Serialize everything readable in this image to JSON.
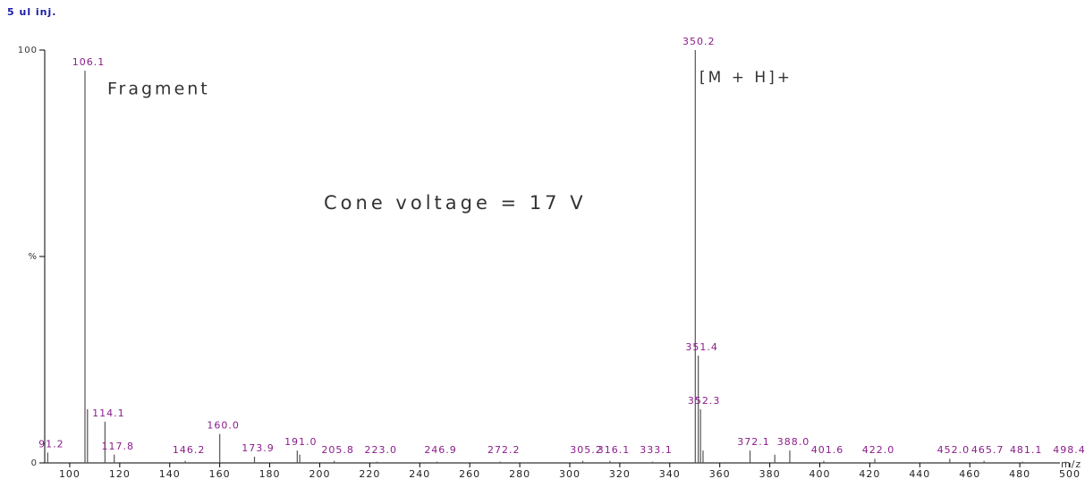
{
  "chart_data": {
    "type": "spectrum",
    "title": "5 ul inj.",
    "annotations": [
      "Fragment",
      "Cone voltage = 17 V",
      "[M + H]+"
    ],
    "x_label": "m/z",
    "color": "#555555",
    "label_color": "#8b1c8b",
    "x": [
      91.2,
      106.1,
      107.1,
      114.1,
      117.8,
      146.2,
      160.0,
      173.9,
      191.0,
      192.0,
      205.8,
      223.0,
      246.9,
      272.2,
      305.2,
      316.1,
      333.1,
      350.2,
      351.4,
      352.3,
      353.3,
      372.1,
      382.0,
      388.0,
      401.6,
      422.0,
      452.0,
      465.7,
      481.1,
      498.4
    ],
    "x_labels": [
      "91.2",
      "106.1",
      null,
      "114.1",
      "117.8",
      "146.2",
      "160.0",
      "173.9",
      "191.0",
      null,
      "205.8",
      "223.0",
      "246.9",
      "272.2",
      "305.2",
      "316.1",
      "333.1",
      "350.2",
      "351.4",
      "352.3",
      null,
      "372.1",
      null,
      "388.0",
      "401.6",
      "422.0",
      "452.0",
      "465.7",
      "481.1",
      "498.4"
    ],
    "values": [
      2.5,
      95,
      13,
      10,
      2,
      0.5,
      7,
      1.5,
      3,
      2,
      0.5,
      0.3,
      0.3,
      0.3,
      0.5,
      0.5,
      0.3,
      100,
      26,
      13,
      3,
      3,
      2,
      3,
      0.5,
      1,
      1,
      0.5,
      0.3,
      0.3
    ],
    "xlim": [
      90,
      505
    ],
    "xticks": [
      100,
      120,
      140,
      160,
      180,
      200,
      220,
      240,
      260,
      280,
      300,
      320,
      340,
      360,
      380,
      400,
      420,
      440,
      460,
      480,
      500
    ],
    "ylim": [
      0,
      100
    ],
    "yticks": [
      0,
      {
        "value": 50,
        "label": "%"
      },
      100
    ]
  }
}
